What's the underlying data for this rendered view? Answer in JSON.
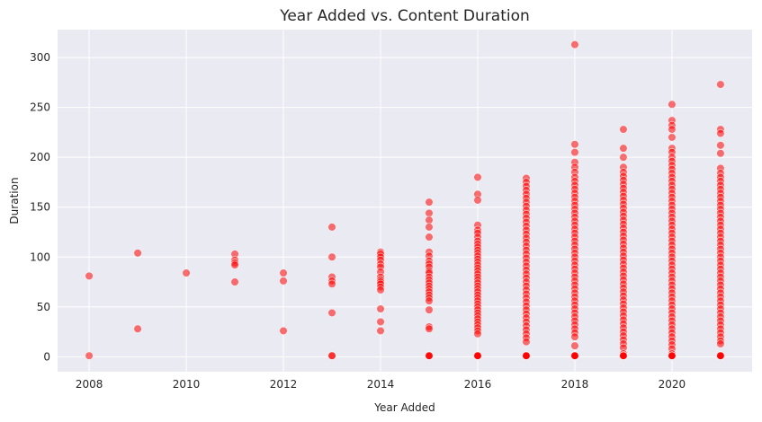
{
  "chart_data": {
    "type": "scatter",
    "title": "Year Added vs. Content Duration",
    "xlabel": "Year Added",
    "ylabel": "Duration",
    "xlim": [
      2007.35,
      2021.65
    ],
    "ylim": [
      -15,
      328
    ],
    "xticks": [
      2008,
      2010,
      2012,
      2014,
      2016,
      2018,
      2020
    ],
    "yticks": [
      0,
      50,
      100,
      150,
      200,
      250,
      300
    ],
    "grid": true,
    "style": {
      "background": "#eaeaf2",
      "grid_color": "#ffffff",
      "marker_color": "#ff0000",
      "marker_edge": "#ffffff",
      "marker_alpha": 0.55
    },
    "points_by_year": [
      {
        "year": 2008,
        "values": [
          81,
          1
        ]
      },
      {
        "year": 2009,
        "values": [
          104,
          28
        ]
      },
      {
        "year": 2010,
        "values": [
          84
        ]
      },
      {
        "year": 2011,
        "values": [
          103,
          97,
          94,
          92,
          75
        ]
      },
      {
        "year": 2012,
        "values": [
          84,
          76,
          26
        ]
      },
      {
        "year": 2013,
        "values": [
          130,
          100,
          80,
          76,
          73,
          44,
          1,
          1
        ]
      },
      {
        "year": 2014,
        "values": [
          105,
          103,
          100,
          97,
          93,
          90,
          85,
          80,
          77,
          75,
          73,
          70,
          67,
          48,
          35,
          26
        ]
      },
      {
        "year": 2015,
        "values": [
          155,
          144,
          137,
          130,
          120,
          105,
          101,
          96,
          93,
          90,
          86,
          84,
          80,
          77,
          74,
          71,
          68,
          65,
          62,
          59,
          56,
          47,
          30,
          28,
          1,
          1,
          1,
          1
        ]
      },
      {
        "year": 2016,
        "values": [
          180,
          163,
          157,
          132,
          127,
          124,
          120,
          116,
          113,
          110,
          107,
          104,
          101,
          98,
          95,
          92,
          89,
          86,
          83,
          80,
          77,
          74,
          71,
          68,
          65,
          62,
          59,
          56,
          53,
          50,
          47,
          44,
          41,
          38,
          35,
          32,
          29,
          26,
          23,
          1,
          1,
          1,
          1,
          1
        ]
      },
      {
        "year": 2017,
        "values": [
          179,
          175,
          171,
          167,
          163,
          159,
          155,
          151,
          147,
          143,
          139,
          135,
          131,
          127,
          123,
          119,
          115,
          111,
          107,
          103,
          99,
          95,
          91,
          87,
          83,
          79,
          75,
          71,
          67,
          63,
          59,
          55,
          51,
          47,
          43,
          39,
          35,
          31,
          27,
          23,
          19,
          15,
          1,
          1,
          1,
          1,
          1,
          1
        ]
      },
      {
        "year": 2018,
        "values": [
          313,
          213,
          205,
          195,
          190,
          185,
          180,
          176,
          172,
          168,
          164,
          160,
          156,
          152,
          148,
          144,
          140,
          136,
          132,
          128,
          124,
          120,
          116,
          112,
          108,
          104,
          100,
          96,
          92,
          88,
          84,
          80,
          76,
          72,
          68,
          64,
          60,
          56,
          52,
          48,
          44,
          40,
          36,
          32,
          28,
          24,
          20,
          11,
          1,
          1,
          1,
          1,
          1,
          1
        ]
      },
      {
        "year": 2019,
        "values": [
          228,
          209,
          200,
          190,
          185,
          181,
          177,
          173,
          169,
          165,
          161,
          157,
          153,
          149,
          145,
          141,
          137,
          133,
          129,
          125,
          121,
          117,
          113,
          109,
          105,
          101,
          97,
          93,
          89,
          85,
          81,
          77,
          73,
          69,
          65,
          61,
          57,
          53,
          49,
          45,
          41,
          37,
          33,
          29,
          25,
          21,
          17,
          13,
          9,
          3,
          1,
          1,
          1,
          1,
          1
        ]
      },
      {
        "year": 2020,
        "values": [
          253,
          237,
          232,
          228,
          220,
          209,
          205,
          200,
          196,
          192,
          188,
          184,
          180,
          176,
          172,
          168,
          164,
          160,
          156,
          152,
          148,
          144,
          140,
          136,
          132,
          128,
          124,
          120,
          116,
          112,
          108,
          104,
          100,
          96,
          92,
          88,
          84,
          80,
          76,
          72,
          68,
          64,
          60,
          56,
          52,
          48,
          44,
          40,
          36,
          32,
          28,
          24,
          20,
          16,
          12,
          8,
          3,
          1,
          1,
          1,
          1,
          1
        ]
      },
      {
        "year": 2021,
        "values": [
          273,
          228,
          224,
          212,
          204,
          189,
          184,
          180,
          176,
          172,
          168,
          164,
          160,
          156,
          152,
          148,
          144,
          140,
          136,
          132,
          128,
          124,
          120,
          116,
          112,
          108,
          104,
          100,
          96,
          92,
          88,
          84,
          80,
          76,
          72,
          68,
          64,
          60,
          56,
          52,
          48,
          44,
          40,
          36,
          32,
          28,
          24,
          20,
          16,
          13,
          1,
          1,
          1,
          1,
          1
        ]
      }
    ]
  }
}
